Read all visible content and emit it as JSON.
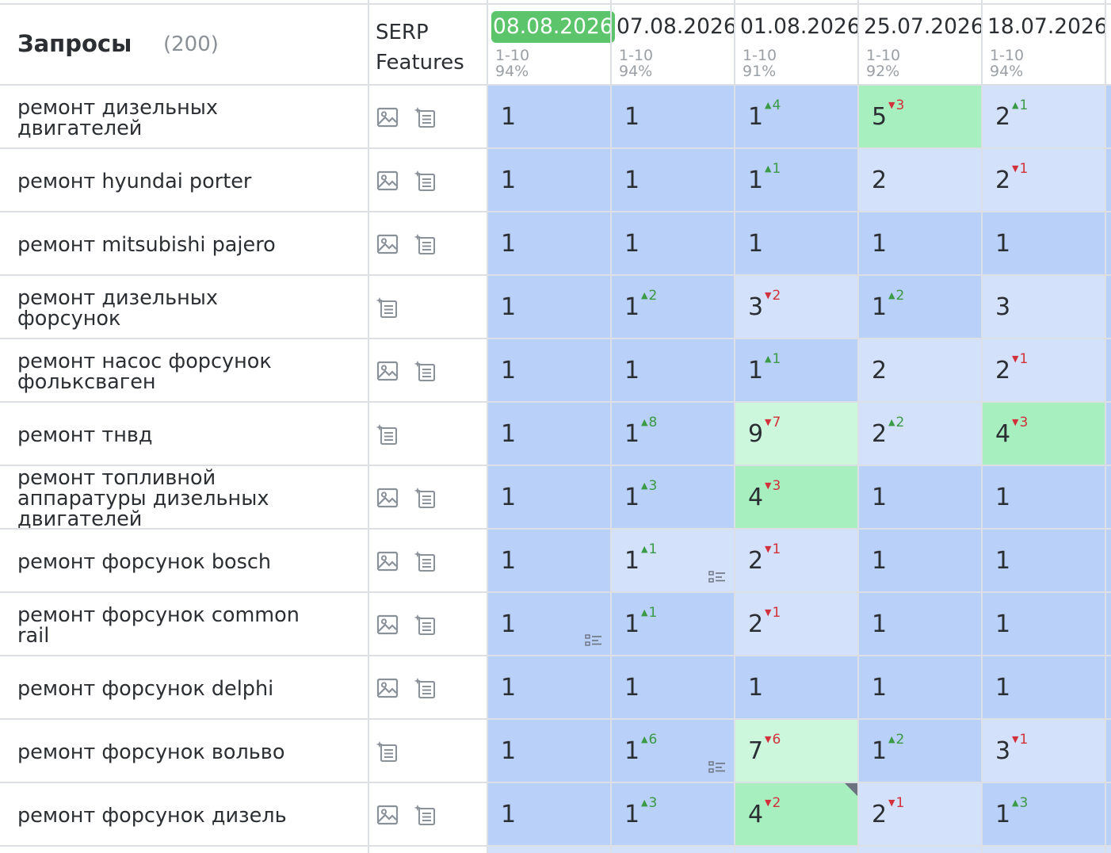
{
  "header": {
    "queries_title": "Запросы",
    "queries_count": "(200)",
    "serp_line1": "SERP",
    "serp_line2": "Features",
    "dates": [
      {
        "date": "08.08.2026",
        "range": "1-10",
        "pct": "94%",
        "active": true
      },
      {
        "date": "07.08.2026",
        "range": "1-10",
        "pct": "94%",
        "active": false
      },
      {
        "date": "01.08.2026",
        "range": "1-10",
        "pct": "91%",
        "active": false
      },
      {
        "date": "25.07.2026",
        "range": "1-10",
        "pct": "92%",
        "active": false
      },
      {
        "date": "18.07.2026",
        "range": "1-10",
        "pct": "94%",
        "active": false
      }
    ]
  },
  "colors": {
    "blue_dark": "#b9d0f8",
    "blue_light": "#d3e1fb",
    "green_dark": "#a8efc0",
    "green_light": "#cdf7dc",
    "active_date": "#5cc46b",
    "up": "#3a9a46",
    "down": "#d2303a"
  },
  "rows": [
    {
      "keyword": [
        "ремонт дизельных",
        "двигателей"
      ],
      "features": [
        "image-icon",
        "featured-snippet-icon"
      ],
      "cells": [
        {
          "pos": "1",
          "bg": "blue_dark"
        },
        {
          "pos": "1",
          "bg": "blue_dark"
        },
        {
          "pos": "1",
          "delta": "4",
          "dir": "up",
          "bg": "blue_dark"
        },
        {
          "pos": "5",
          "delta": "3",
          "dir": "down",
          "bg": "green_dark"
        },
        {
          "pos": "2",
          "delta": "1",
          "dir": "up",
          "bg": "blue_light"
        }
      ]
    },
    {
      "keyword": [
        "ремонт hyundai porter"
      ],
      "features": [
        "image-icon",
        "featured-snippet-icon"
      ],
      "cells": [
        {
          "pos": "1",
          "bg": "blue_dark"
        },
        {
          "pos": "1",
          "bg": "blue_dark"
        },
        {
          "pos": "1",
          "delta": "1",
          "dir": "up",
          "bg": "blue_dark"
        },
        {
          "pos": "2",
          "bg": "blue_light"
        },
        {
          "pos": "2",
          "delta": "1",
          "dir": "down",
          "bg": "blue_light"
        }
      ]
    },
    {
      "keyword": [
        "ремонт mitsubishi pajero"
      ],
      "features": [
        "image-icon",
        "featured-snippet-icon"
      ],
      "cells": [
        {
          "pos": "1",
          "bg": "blue_dark"
        },
        {
          "pos": "1",
          "bg": "blue_dark"
        },
        {
          "pos": "1",
          "bg": "blue_dark"
        },
        {
          "pos": "1",
          "bg": "blue_dark"
        },
        {
          "pos": "1",
          "bg": "blue_dark"
        }
      ]
    },
    {
      "keyword": [
        "ремонт дизельных",
        "форсунок"
      ],
      "features": [
        "featured-snippet-icon"
      ],
      "cells": [
        {
          "pos": "1",
          "bg": "blue_dark"
        },
        {
          "pos": "1",
          "delta": "2",
          "dir": "up",
          "bg": "blue_dark"
        },
        {
          "pos": "3",
          "delta": "2",
          "dir": "down",
          "bg": "blue_light"
        },
        {
          "pos": "1",
          "delta": "2",
          "dir": "up",
          "bg": "blue_dark"
        },
        {
          "pos": "3",
          "bg": "blue_light"
        }
      ]
    },
    {
      "keyword": [
        "ремонт насос форсунок",
        "фольксваген"
      ],
      "features": [
        "image-icon",
        "featured-snippet-icon"
      ],
      "cells": [
        {
          "pos": "1",
          "bg": "blue_dark"
        },
        {
          "pos": "1",
          "bg": "blue_dark"
        },
        {
          "pos": "1",
          "delta": "1",
          "dir": "up",
          "bg": "blue_dark"
        },
        {
          "pos": "2",
          "bg": "blue_light"
        },
        {
          "pos": "2",
          "delta": "1",
          "dir": "down",
          "bg": "blue_light"
        }
      ]
    },
    {
      "keyword": [
        "ремонт тнвд"
      ],
      "features": [
        "featured-snippet-icon"
      ],
      "cells": [
        {
          "pos": "1",
          "bg": "blue_dark"
        },
        {
          "pos": "1",
          "delta": "8",
          "dir": "up",
          "bg": "blue_dark"
        },
        {
          "pos": "9",
          "delta": "7",
          "dir": "down",
          "bg": "green_light"
        },
        {
          "pos": "2",
          "delta": "2",
          "dir": "up",
          "bg": "blue_light"
        },
        {
          "pos": "4",
          "delta": "3",
          "dir": "down",
          "bg": "green_dark"
        }
      ]
    },
    {
      "keyword": [
        "ремонт топливной",
        "аппаратуры дизельных",
        "двигателей"
      ],
      "features": [
        "image-icon",
        "featured-snippet-icon"
      ],
      "cells": [
        {
          "pos": "1",
          "bg": "blue_dark"
        },
        {
          "pos": "1",
          "delta": "3",
          "dir": "up",
          "bg": "blue_dark"
        },
        {
          "pos": "4",
          "delta": "3",
          "dir": "down",
          "bg": "green_dark"
        },
        {
          "pos": "1",
          "bg": "blue_dark"
        },
        {
          "pos": "1",
          "bg": "blue_dark"
        }
      ]
    },
    {
      "keyword": [
        "ремонт форсунок bosch"
      ],
      "features": [
        "image-icon",
        "featured-snippet-icon"
      ],
      "cells": [
        {
          "pos": "1",
          "bg": "blue_dark"
        },
        {
          "pos": "1",
          "delta": "1",
          "dir": "up",
          "bg": "blue_light",
          "list": true
        },
        {
          "pos": "2",
          "delta": "1",
          "dir": "down",
          "bg": "blue_light"
        },
        {
          "pos": "1",
          "bg": "blue_dark"
        },
        {
          "pos": "1",
          "bg": "blue_dark"
        }
      ]
    },
    {
      "keyword": [
        "ремонт форсунок common",
        "rail"
      ],
      "features": [
        "image-icon",
        "featured-snippet-icon"
      ],
      "cells": [
        {
          "pos": "1",
          "bg": "blue_dark",
          "list": true
        },
        {
          "pos": "1",
          "delta": "1",
          "dir": "up",
          "bg": "blue_dark"
        },
        {
          "pos": "2",
          "delta": "1",
          "dir": "down",
          "bg": "blue_light"
        },
        {
          "pos": "1",
          "bg": "blue_dark"
        },
        {
          "pos": "1",
          "bg": "blue_dark"
        }
      ]
    },
    {
      "keyword": [
        "ремонт форсунок delphi"
      ],
      "features": [
        "image-icon",
        "featured-snippet-icon"
      ],
      "cells": [
        {
          "pos": "1",
          "bg": "blue_dark"
        },
        {
          "pos": "1",
          "bg": "blue_dark"
        },
        {
          "pos": "1",
          "bg": "blue_dark"
        },
        {
          "pos": "1",
          "bg": "blue_dark"
        },
        {
          "pos": "1",
          "bg": "blue_dark"
        }
      ]
    },
    {
      "keyword": [
        "ремонт форсунок вольво"
      ],
      "features": [
        "featured-snippet-icon"
      ],
      "cells": [
        {
          "pos": "1",
          "bg": "blue_dark"
        },
        {
          "pos": "1",
          "delta": "6",
          "dir": "up",
          "bg": "blue_dark",
          "list": true
        },
        {
          "pos": "7",
          "delta": "6",
          "dir": "down",
          "bg": "green_light"
        },
        {
          "pos": "1",
          "delta": "2",
          "dir": "up",
          "bg": "blue_dark"
        },
        {
          "pos": "3",
          "delta": "1",
          "dir": "down",
          "bg": "blue_light"
        }
      ]
    },
    {
      "keyword": [
        "ремонт форсунок дизель"
      ],
      "features": [
        "image-icon",
        "featured-snippet-icon"
      ],
      "cells": [
        {
          "pos": "1",
          "bg": "blue_dark"
        },
        {
          "pos": "1",
          "delta": "3",
          "dir": "up",
          "bg": "blue_dark"
        },
        {
          "pos": "4",
          "delta": "2",
          "dir": "down",
          "bg": "green_dark",
          "corner": true
        },
        {
          "pos": "2",
          "delta": "1",
          "dir": "down",
          "bg": "blue_light"
        },
        {
          "pos": "1",
          "delta": "3",
          "dir": "up",
          "bg": "blue_dark"
        }
      ]
    }
  ]
}
